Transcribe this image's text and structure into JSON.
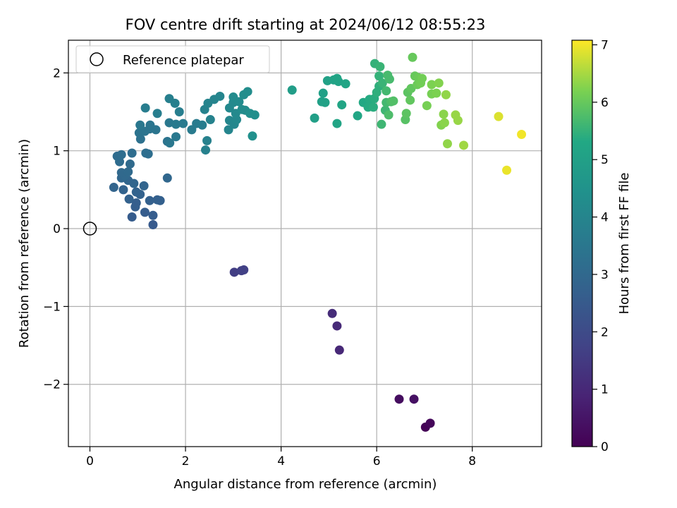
{
  "chart_data": {
    "type": "scatter",
    "title": "FOV centre drift starting at 2024/06/12 08:55:23",
    "xlabel": "Angular distance from reference (arcmin)",
    "ylabel": "Rotation from reference (arcmin)",
    "xlim": [
      -0.45,
      9.45
    ],
    "ylim": [
      -2.8,
      2.42
    ],
    "xticks": [
      0,
      2,
      4,
      6,
      8
    ],
    "yticks": [
      -2,
      -1,
      0,
      1,
      2
    ],
    "grid": true,
    "legend": {
      "position": "top-left",
      "entries": [
        "Reference platepar"
      ]
    },
    "reference_point": {
      "x": 0,
      "y": 0
    },
    "colorbar": {
      "label": "Hours from first FF file",
      "range": [
        0,
        7.08
      ],
      "ticks": [
        0,
        1,
        2,
        3,
        4,
        5,
        6,
        7
      ],
      "colormap": "viridis"
    },
    "points": [
      {
        "x": 7.02,
        "y": -2.55,
        "t": 0.05
      },
      {
        "x": 7.12,
        "y": -2.5,
        "t": 0.15
      },
      {
        "x": 6.47,
        "y": -2.19,
        "t": 0.3
      },
      {
        "x": 6.78,
        "y": -2.19,
        "t": 0.4
      },
      {
        "x": 5.22,
        "y": -1.56,
        "t": 1.0
      },
      {
        "x": 5.17,
        "y": -1.25,
        "t": 1.05
      },
      {
        "x": 5.07,
        "y": -1.09,
        "t": 1.1
      },
      {
        "x": 3.02,
        "y": -0.56,
        "t": 1.6
      },
      {
        "x": 3.17,
        "y": -0.54,
        "t": 1.65
      },
      {
        "x": 3.22,
        "y": -0.53,
        "t": 1.7
      },
      {
        "x": 1.32,
        "y": 0.05,
        "t": 2.5
      },
      {
        "x": 0.88,
        "y": 0.15,
        "t": 2.55
      },
      {
        "x": 1.32,
        "y": 0.17,
        "t": 2.6
      },
      {
        "x": 1.15,
        "y": 0.21,
        "t": 2.6
      },
      {
        "x": 0.95,
        "y": 0.28,
        "t": 2.65
      },
      {
        "x": 0.97,
        "y": 0.33,
        "t": 2.65
      },
      {
        "x": 1.25,
        "y": 0.36,
        "t": 2.7
      },
      {
        "x": 1.47,
        "y": 0.36,
        "t": 2.7
      },
      {
        "x": 1.41,
        "y": 0.37,
        "t": 2.7
      },
      {
        "x": 0.82,
        "y": 0.38,
        "t": 2.75
      },
      {
        "x": 1.05,
        "y": 0.44,
        "t": 2.75
      },
      {
        "x": 0.97,
        "y": 0.47,
        "t": 2.8
      },
      {
        "x": 0.7,
        "y": 0.5,
        "t": 2.8
      },
      {
        "x": 0.5,
        "y": 0.53,
        "t": 2.85
      },
      {
        "x": 1.13,
        "y": 0.55,
        "t": 2.85
      },
      {
        "x": 0.92,
        "y": 0.58,
        "t": 2.9
      },
      {
        "x": 0.8,
        "y": 0.62,
        "t": 2.9
      },
      {
        "x": 0.66,
        "y": 0.65,
        "t": 2.95
      },
      {
        "x": 1.62,
        "y": 0.65,
        "t": 2.95
      },
      {
        "x": 0.73,
        "y": 0.68,
        "t": 3.0
      },
      {
        "x": 0.66,
        "y": 0.72,
        "t": 3.0
      },
      {
        "x": 0.8,
        "y": 0.73,
        "t": 3.05
      },
      {
        "x": 0.84,
        "y": 0.83,
        "t": 3.05
      },
      {
        "x": 0.62,
        "y": 0.86,
        "t": 3.1
      },
      {
        "x": 0.57,
        "y": 0.93,
        "t": 3.1
      },
      {
        "x": 0.66,
        "y": 0.95,
        "t": 3.15
      },
      {
        "x": 0.88,
        "y": 0.97,
        "t": 3.15
      },
      {
        "x": 1.17,
        "y": 0.97,
        "t": 3.2
      },
      {
        "x": 1.22,
        "y": 0.96,
        "t": 3.2
      },
      {
        "x": 1.06,
        "y": 1.15,
        "t": 3.3
      },
      {
        "x": 1.62,
        "y": 1.12,
        "t": 3.35
      },
      {
        "x": 1.03,
        "y": 1.23,
        "t": 3.35
      },
      {
        "x": 1.15,
        "y": 1.25,
        "t": 3.4
      },
      {
        "x": 1.25,
        "y": 1.28,
        "t": 3.4
      },
      {
        "x": 1.38,
        "y": 1.27,
        "t": 3.45
      },
      {
        "x": 1.26,
        "y": 1.33,
        "t": 3.45
      },
      {
        "x": 1.05,
        "y": 1.33,
        "t": 3.5
      },
      {
        "x": 1.67,
        "y": 1.1,
        "t": 3.5
      },
      {
        "x": 1.8,
        "y": 1.18,
        "t": 3.55
      },
      {
        "x": 1.66,
        "y": 1.36,
        "t": 3.55
      },
      {
        "x": 1.8,
        "y": 1.34,
        "t": 3.6
      },
      {
        "x": 1.95,
        "y": 1.35,
        "t": 3.6
      },
      {
        "x": 2.13,
        "y": 1.27,
        "t": 3.65
      },
      {
        "x": 2.23,
        "y": 1.35,
        "t": 3.65
      },
      {
        "x": 2.35,
        "y": 1.33,
        "t": 3.7
      },
      {
        "x": 1.16,
        "y": 1.55,
        "t": 3.7
      },
      {
        "x": 1.41,
        "y": 1.48,
        "t": 3.75
      },
      {
        "x": 1.87,
        "y": 1.5,
        "t": 3.75
      },
      {
        "x": 1.66,
        "y": 1.67,
        "t": 3.8
      },
      {
        "x": 1.78,
        "y": 1.61,
        "t": 3.8
      },
      {
        "x": 2.45,
        "y": 1.13,
        "t": 3.85
      },
      {
        "x": 2.42,
        "y": 1.01,
        "t": 3.85
      },
      {
        "x": 2.52,
        "y": 1.4,
        "t": 3.9
      },
      {
        "x": 2.4,
        "y": 1.53,
        "t": 3.9
      },
      {
        "x": 2.47,
        "y": 1.61,
        "t": 3.95
      },
      {
        "x": 2.6,
        "y": 1.66,
        "t": 3.95
      },
      {
        "x": 2.72,
        "y": 1.7,
        "t": 4.0
      },
      {
        "x": 2.9,
        "y": 1.27,
        "t": 4.0
      },
      {
        "x": 2.92,
        "y": 1.39,
        "t": 4.05
      },
      {
        "x": 3.02,
        "y": 1.34,
        "t": 4.05
      },
      {
        "x": 3.07,
        "y": 1.4,
        "t": 4.1
      },
      {
        "x": 2.92,
        "y": 1.55,
        "t": 4.1
      },
      {
        "x": 3.05,
        "y": 1.48,
        "t": 4.15
      },
      {
        "x": 3.0,
        "y": 1.62,
        "t": 4.15
      },
      {
        "x": 3.0,
        "y": 1.69,
        "t": 4.2
      },
      {
        "x": 3.12,
        "y": 1.63,
        "t": 4.2
      },
      {
        "x": 3.18,
        "y": 1.53,
        "t": 4.25
      },
      {
        "x": 3.25,
        "y": 1.52,
        "t": 4.25
      },
      {
        "x": 3.22,
        "y": 1.72,
        "t": 4.3
      },
      {
        "x": 3.3,
        "y": 1.76,
        "t": 4.3
      },
      {
        "x": 3.35,
        "y": 1.48,
        "t": 4.35
      },
      {
        "x": 3.45,
        "y": 1.46,
        "t": 4.35
      },
      {
        "x": 3.4,
        "y": 1.19,
        "t": 4.4
      },
      {
        "x": 4.23,
        "y": 1.78,
        "t": 4.9
      },
      {
        "x": 4.7,
        "y": 1.42,
        "t": 4.95
      },
      {
        "x": 4.85,
        "y": 1.63,
        "t": 5.0
      },
      {
        "x": 4.88,
        "y": 1.74,
        "t": 5.0
      },
      {
        "x": 4.92,
        "y": 1.62,
        "t": 5.05
      },
      {
        "x": 4.97,
        "y": 1.9,
        "t": 5.05
      },
      {
        "x": 5.1,
        "y": 1.91,
        "t": 5.1
      },
      {
        "x": 5.2,
        "y": 1.89,
        "t": 5.1
      },
      {
        "x": 5.17,
        "y": 1.93,
        "t": 5.15
      },
      {
        "x": 5.17,
        "y": 1.35,
        "t": 5.15
      },
      {
        "x": 5.27,
        "y": 1.59,
        "t": 5.2
      },
      {
        "x": 5.35,
        "y": 1.86,
        "t": 5.2
      },
      {
        "x": 5.6,
        "y": 1.45,
        "t": 5.25
      },
      {
        "x": 5.72,
        "y": 1.62,
        "t": 5.3
      },
      {
        "x": 5.8,
        "y": 1.6,
        "t": 5.3
      },
      {
        "x": 5.85,
        "y": 1.66,
        "t": 5.35
      },
      {
        "x": 5.82,
        "y": 1.56,
        "t": 5.35
      },
      {
        "x": 5.93,
        "y": 1.56,
        "t": 5.4
      },
      {
        "x": 5.95,
        "y": 1.67,
        "t": 5.4
      },
      {
        "x": 6.0,
        "y": 1.75,
        "t": 5.45
      },
      {
        "x": 6.05,
        "y": 1.83,
        "t": 5.45
      },
      {
        "x": 6.05,
        "y": 1.96,
        "t": 5.5
      },
      {
        "x": 5.96,
        "y": 2.12,
        "t": 5.5
      },
      {
        "x": 6.07,
        "y": 2.08,
        "t": 5.55
      },
      {
        "x": 6.12,
        "y": 1.87,
        "t": 5.55
      },
      {
        "x": 6.1,
        "y": 1.34,
        "t": 5.6
      },
      {
        "x": 6.18,
        "y": 1.52,
        "t": 5.6
      },
      {
        "x": 6.2,
        "y": 1.62,
        "t": 5.65
      },
      {
        "x": 6.2,
        "y": 1.77,
        "t": 5.65
      },
      {
        "x": 6.23,
        "y": 1.97,
        "t": 5.7
      },
      {
        "x": 6.27,
        "y": 1.92,
        "t": 5.7
      },
      {
        "x": 6.25,
        "y": 1.46,
        "t": 5.75
      },
      {
        "x": 6.3,
        "y": 1.63,
        "t": 5.75
      },
      {
        "x": 6.35,
        "y": 1.64,
        "t": 5.8
      },
      {
        "x": 6.6,
        "y": 1.4,
        "t": 5.85
      },
      {
        "x": 6.62,
        "y": 1.48,
        "t": 5.9
      },
      {
        "x": 6.65,
        "y": 1.75,
        "t": 5.9
      },
      {
        "x": 6.7,
        "y": 1.65,
        "t": 5.95
      },
      {
        "x": 6.72,
        "y": 1.8,
        "t": 5.95
      },
      {
        "x": 6.75,
        "y": 2.2,
        "t": 6.0
      },
      {
        "x": 6.8,
        "y": 1.96,
        "t": 6.0
      },
      {
        "x": 6.87,
        "y": 1.94,
        "t": 6.05
      },
      {
        "x": 6.85,
        "y": 1.85,
        "t": 6.05
      },
      {
        "x": 6.92,
        "y": 1.87,
        "t": 6.1
      },
      {
        "x": 6.95,
        "y": 1.93,
        "t": 6.1
      },
      {
        "x": 7.05,
        "y": 1.58,
        "t": 6.15
      },
      {
        "x": 7.15,
        "y": 1.73,
        "t": 6.15
      },
      {
        "x": 7.15,
        "y": 1.85,
        "t": 6.2
      },
      {
        "x": 7.25,
        "y": 1.74,
        "t": 6.2
      },
      {
        "x": 7.3,
        "y": 1.87,
        "t": 6.25
      },
      {
        "x": 7.35,
        "y": 1.33,
        "t": 6.25
      },
      {
        "x": 7.4,
        "y": 1.47,
        "t": 6.3
      },
      {
        "x": 7.42,
        "y": 1.36,
        "t": 6.3
      },
      {
        "x": 7.45,
        "y": 1.72,
        "t": 6.35
      },
      {
        "x": 7.48,
        "y": 1.09,
        "t": 6.35
      },
      {
        "x": 7.65,
        "y": 1.46,
        "t": 6.4
      },
      {
        "x": 7.7,
        "y": 1.39,
        "t": 6.4
      },
      {
        "x": 7.82,
        "y": 1.07,
        "t": 6.45
      },
      {
        "x": 8.55,
        "y": 1.44,
        "t": 6.85
      },
      {
        "x": 8.72,
        "y": 0.75,
        "t": 6.95
      },
      {
        "x": 9.03,
        "y": 1.21,
        "t": 7.0
      }
    ]
  }
}
